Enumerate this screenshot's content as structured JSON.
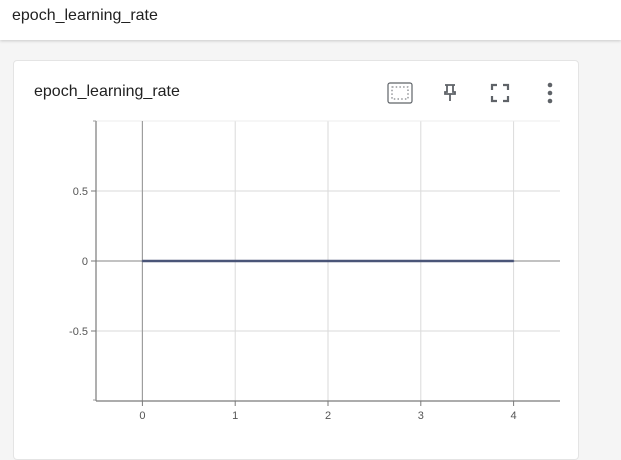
{
  "header": {
    "title": "epoch_learning_rate"
  },
  "card": {
    "title": "epoch_learning_rate",
    "tools": [
      {
        "name": "fit-domain-icon"
      },
      {
        "name": "pin-icon"
      },
      {
        "name": "fullscreen-icon"
      },
      {
        "name": "more-vert-icon"
      }
    ]
  },
  "colors": {
    "series": "#4a5578",
    "grid": "#dadada",
    "axis": "#9e9e9e",
    "tool_icon": "#5f6368"
  },
  "chart_data": {
    "type": "line",
    "title": "",
    "xlabel": "",
    "ylabel": "",
    "xlim": [
      -0.5,
      4.5
    ],
    "ylim": [
      -1,
      1
    ],
    "x_ticks": [
      0,
      1,
      2,
      3,
      4
    ],
    "x_tick_labels": [
      "0",
      "1",
      "2",
      "3",
      "4"
    ],
    "y_ticks": [
      0.5,
      0,
      -0.5
    ],
    "y_tick_labels": [
      "0.5",
      "0",
      "-0.5"
    ],
    "grid": true,
    "series": [
      {
        "x": [
          0,
          1,
          2,
          3,
          4
        ],
        "y": [
          0,
          0,
          0,
          0,
          0
        ]
      }
    ]
  }
}
